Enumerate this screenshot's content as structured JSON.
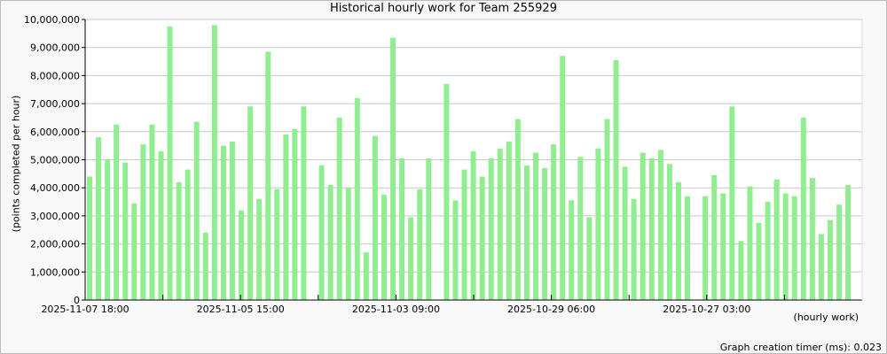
{
  "chart_data": {
    "type": "bar",
    "title": "Historical hourly work for Team 255929",
    "ylabel": "(points completed per hour)",
    "xlabel": "(hourly work)",
    "ylim": [
      0,
      10000000
    ],
    "yticks": [
      "0",
      "1,000,000",
      "2,000,000",
      "3,000,000",
      "4,000,000",
      "5,000,000",
      "6,000,000",
      "7,000,000",
      "8,000,000",
      "9,000,000",
      "10,000,000"
    ],
    "xtick_labels": [
      "2025-11-07 18:00",
      "",
      "2025-11-05 15:00",
      "",
      "2025-11-03 09:00",
      "",
      "2025-10-29 06:00",
      "",
      "2025-10-27 03:00",
      "",
      ""
    ],
    "grid": true,
    "bar_color": "#90ee90",
    "values": [
      4400000,
      5800000,
      5000000,
      6250000,
      4900000,
      3450000,
      5550000,
      6250000,
      5300000,
      9750000,
      4200000,
      4650000,
      6350000,
      2400000,
      9800000,
      5500000,
      5650000,
      3200000,
      6900000,
      3600000,
      8850000,
      3950000,
      5900000,
      6100000,
      6900000,
      0,
      4800000,
      4100000,
      6500000,
      4000000,
      7200000,
      1700000,
      5850000,
      3750000,
      9350000,
      5050000,
      2950000,
      3950000,
      5050000,
      0,
      7700000,
      3550000,
      4650000,
      5300000,
      4400000,
      5050000,
      5400000,
      5650000,
      6450000,
      4800000,
      5250000,
      4700000,
      5550000,
      8700000,
      3550000,
      5100000,
      2950000,
      5400000,
      6450000,
      8550000,
      4750000,
      3600000,
      5250000,
      5050000,
      5350000,
      4850000,
      4200000,
      3700000,
      0,
      3700000,
      4450000,
      3800000,
      6900000,
      2100000,
      4050000,
      2750000,
      3500000,
      4300000,
      3800000,
      3700000,
      6500000,
      4350000,
      2350000,
      2850000,
      3400000,
      4100000
    ]
  },
  "footer": "Graph creation timer (ms): 0.023"
}
